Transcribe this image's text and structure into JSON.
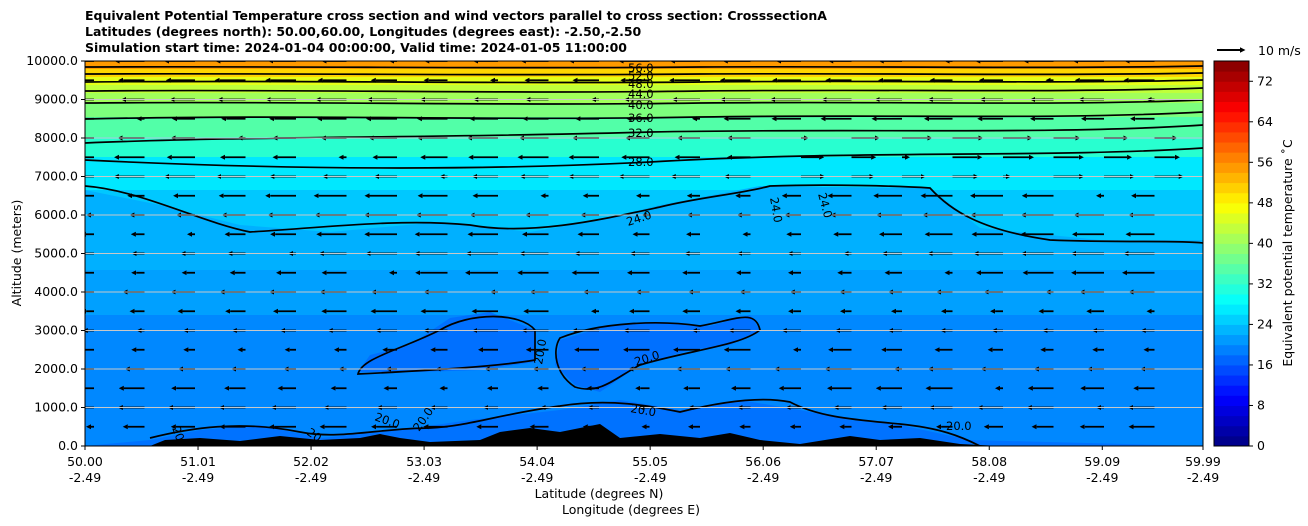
{
  "title_lines": [
    "Equivalent Potential Temperature cross section and wind vectors parallel to cross section: CrosssectionA",
    "Latitudes (degrees north): 50.00,60.00, Longitudes (degrees east): -2.50,-2.50",
    "Simulation start time: 2024-01-04 00:00:00, Valid time: 2024-01-05 11:00:00"
  ],
  "chart_data": {
    "type": "heatmap",
    "subtype": "filled contour cross section with wind vectors",
    "xlabel_lines": [
      "Latitude (degrees N)",
      "Longitude (degrees E)"
    ],
    "ylabel": "Altitude (meters)",
    "ylim": [
      0,
      10000
    ],
    "x_range": [
      50.0,
      59.99
    ],
    "x_ticks": [
      {
        "lat": "50.00",
        "lon": "-2.49"
      },
      {
        "lat": "51.01",
        "lon": "-2.49"
      },
      {
        "lat": "52.02",
        "lon": "-2.49"
      },
      {
        "lat": "53.03",
        "lon": "-2.49"
      },
      {
        "lat": "54.04",
        "lon": "-2.49"
      },
      {
        "lat": "55.05",
        "lon": "-2.49"
      },
      {
        "lat": "56.06",
        "lon": "-2.49"
      },
      {
        "lat": "57.07",
        "lon": "-2.49"
      },
      {
        "lat": "58.08",
        "lon": "-2.49"
      },
      {
        "lat": "59.09",
        "lon": "-2.49"
      },
      {
        "lat": "59.99",
        "lon": "-2.49"
      }
    ],
    "y_ticks": [
      "0.0",
      "1000.0",
      "2000.0",
      "3000.0",
      "4000.0",
      "5000.0",
      "6000.0",
      "7000.0",
      "8000.0",
      "9000.0",
      "10000.0"
    ],
    "grid": "horizontal",
    "colorbar": {
      "label": "Equivalent potential temperature $^\\circ$C",
      "label_text": "Equivalent potential temperature ˚C",
      "range": [
        0,
        76
      ],
      "ticks": [
        0,
        8,
        16,
        24,
        32,
        40,
        48,
        56,
        64,
        72
      ],
      "colormap": "jet"
    },
    "contour_labels": [
      "56.0",
      "52.0",
      "48.0",
      "44.0",
      "40.0",
      "36.0",
      "32.0",
      "28.0",
      "24.0",
      "20.0",
      "20"
    ],
    "field_layers": [
      {
        "z_bottom": 0,
        "z_top": 4000,
        "theta_e": 20
      },
      {
        "z_bottom": 4000,
        "z_top": 7000,
        "theta_e": 24
      },
      {
        "z_bottom": 7000,
        "z_top": 8000,
        "theta_e": 30
      },
      {
        "z_bottom": 8000,
        "z_top": 8700,
        "theta_e": 34
      },
      {
        "z_bottom": 8700,
        "z_top": 9200,
        "theta_e": 40
      },
      {
        "z_bottom": 9200,
        "z_top": 9600,
        "theta_e": 48
      },
      {
        "z_bottom": 9600,
        "z_top": 10000,
        "theta_e": 56
      }
    ],
    "wind_reference": {
      "label": "10 m/s",
      "speed": 10
    },
    "wind_direction": "southward (toward lower latitude) along cross section"
  }
}
